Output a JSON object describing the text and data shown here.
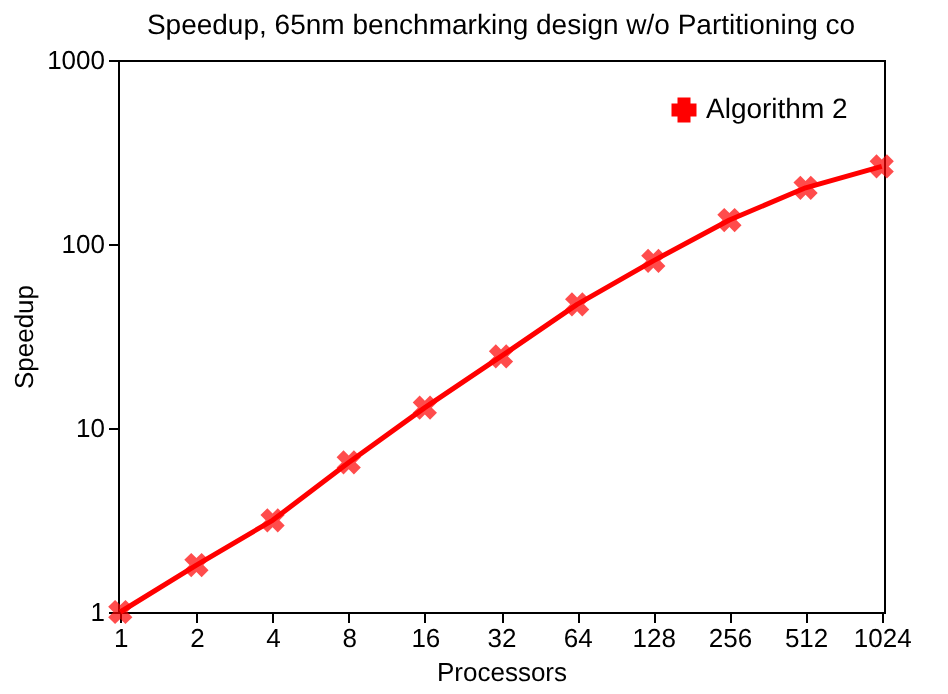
{
  "chart_data": {
    "type": "line",
    "title": "Speedup, 65nm benchmarking design w/o Partitioning co",
    "xlabel": "Processors",
    "ylabel": "Speedup",
    "categories": [
      "1",
      "2",
      "4",
      "8",
      "16",
      "32",
      "64",
      "128",
      "256",
      "512",
      "1024"
    ],
    "series": [
      {
        "name": "Algorithm 2",
        "color": "#ff0000",
        "values": [
          1,
          1.8,
          3.15,
          6.5,
          12.9,
          24.5,
          47,
          81,
          135,
          202,
          264
        ]
      }
    ],
    "log": "y",
    "ylim": [
      1,
      1000
    ],
    "yticks": [
      1,
      10,
      100,
      1000
    ],
    "grid": false,
    "legend": "top right",
    "marker": "cross",
    "line_style": "solid"
  }
}
